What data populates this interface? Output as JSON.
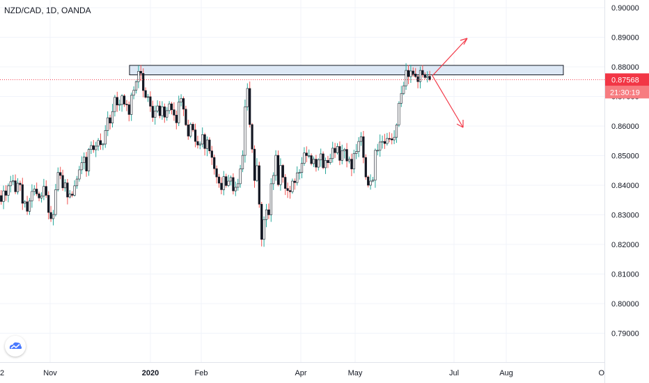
{
  "chart_title": "NZD/CAD, 1D, OANDA",
  "price_axis": {
    "ticks": [
      "0.90000",
      "0.89000",
      "0.88000",
      "0.87000",
      "0.86000",
      "0.85000",
      "0.84000",
      "0.83000",
      "0.82000",
      "0.81000",
      "0.80000",
      "0.79000"
    ],
    "last_price": "0.87568",
    "countdown": "21:30:19"
  },
  "time_axis": {
    "ticks": [
      {
        "label": "2",
        "bold": false
      },
      {
        "label": "Nov",
        "bold": false
      },
      {
        "label": "2020",
        "bold": true
      },
      {
        "label": "Feb",
        "bold": false
      },
      {
        "label": "Apr",
        "bold": false
      },
      {
        "label": "May",
        "bold": false
      },
      {
        "label": "Jul",
        "bold": false
      },
      {
        "label": "Aug",
        "bold": false
      },
      {
        "label": "O",
        "bold": false
      }
    ]
  },
  "colors": {
    "bull_candle": "#ffffff",
    "bear_candle": "#131722",
    "bull_wick": "#26a69a",
    "bear_wick": "#ef5350",
    "zone_fill": "#dde8f5",
    "arrows": "#f23645",
    "last_price_bg": "#f23645"
  },
  "chart_data": {
    "type": "candlestick",
    "symbol": "NZD/CAD",
    "interval": "1D",
    "source": "OANDA",
    "y_range": [
      0.785,
      0.902
    ],
    "closes": [
      0.8345,
      0.8381,
      0.8366,
      0.8398,
      0.8412,
      0.8415,
      0.8378,
      0.8407,
      0.8402,
      0.8339,
      0.8344,
      0.8312,
      0.8347,
      0.8379,
      0.8387,
      0.8371,
      0.8357,
      0.8364,
      0.8396,
      0.8366,
      0.8308,
      0.8287,
      0.8301,
      0.8385,
      0.8443,
      0.8433,
      0.8391,
      0.8408,
      0.836,
      0.837,
      0.8366,
      0.8398,
      0.8421,
      0.8452,
      0.8476,
      0.8495,
      0.8448,
      0.8521,
      0.8534,
      0.852,
      0.8532,
      0.8551,
      0.8537,
      0.8539,
      0.8585,
      0.8628,
      0.861,
      0.8649,
      0.8697,
      0.8671,
      0.8673,
      0.8702,
      0.8674,
      0.8672,
      0.8639,
      0.8704,
      0.8721,
      0.875,
      0.8785,
      0.8778,
      0.872,
      0.8697,
      0.8699,
      0.8667,
      0.8629,
      0.8651,
      0.8668,
      0.8635,
      0.8665,
      0.863,
      0.8652,
      0.8675,
      0.8655,
      0.8637,
      0.8611,
      0.8681,
      0.8693,
      0.8657,
      0.8604,
      0.8566,
      0.8606,
      0.8587,
      0.8548,
      0.8536,
      0.8539,
      0.8571,
      0.8524,
      0.8553,
      0.8516,
      0.8494,
      0.8456,
      0.8428,
      0.8407,
      0.8385,
      0.8429,
      0.8399,
      0.8414,
      0.8426,
      0.8381,
      0.8393,
      0.8405,
      0.8455,
      0.8501,
      0.8665,
      0.8727,
      0.8605,
      0.8522,
      0.8416,
      0.8466,
      0.8336,
      0.8217,
      0.8284,
      0.8317,
      0.83,
      0.8405,
      0.8433,
      0.8501,
      0.8402,
      0.8467,
      0.8427,
      0.8389,
      0.8382,
      0.8378,
      0.8414,
      0.8409,
      0.8442,
      0.8443,
      0.8474,
      0.8509,
      0.85,
      0.85,
      0.8473,
      0.8488,
      0.8461,
      0.8486,
      0.8506,
      0.8459,
      0.8484,
      0.8476,
      0.849,
      0.8525,
      0.851,
      0.8531,
      0.8484,
      0.8516,
      0.8521,
      0.8482,
      0.8488,
      0.8455,
      0.8507,
      0.8514,
      0.8548,
      0.8564,
      0.8494,
      0.8428,
      0.84,
      0.8414,
      0.8417,
      0.8518,
      0.8518,
      0.8546,
      0.8548,
      0.8541,
      0.8558,
      0.8557,
      0.8553,
      0.8562,
      0.8604,
      0.8677,
      0.871,
      0.8736,
      0.8788,
      0.8767,
      0.8786,
      0.8776,
      0.8767,
      0.875,
      0.8788,
      0.8774,
      0.8764,
      0.8768,
      0.8757
    ]
  }
}
